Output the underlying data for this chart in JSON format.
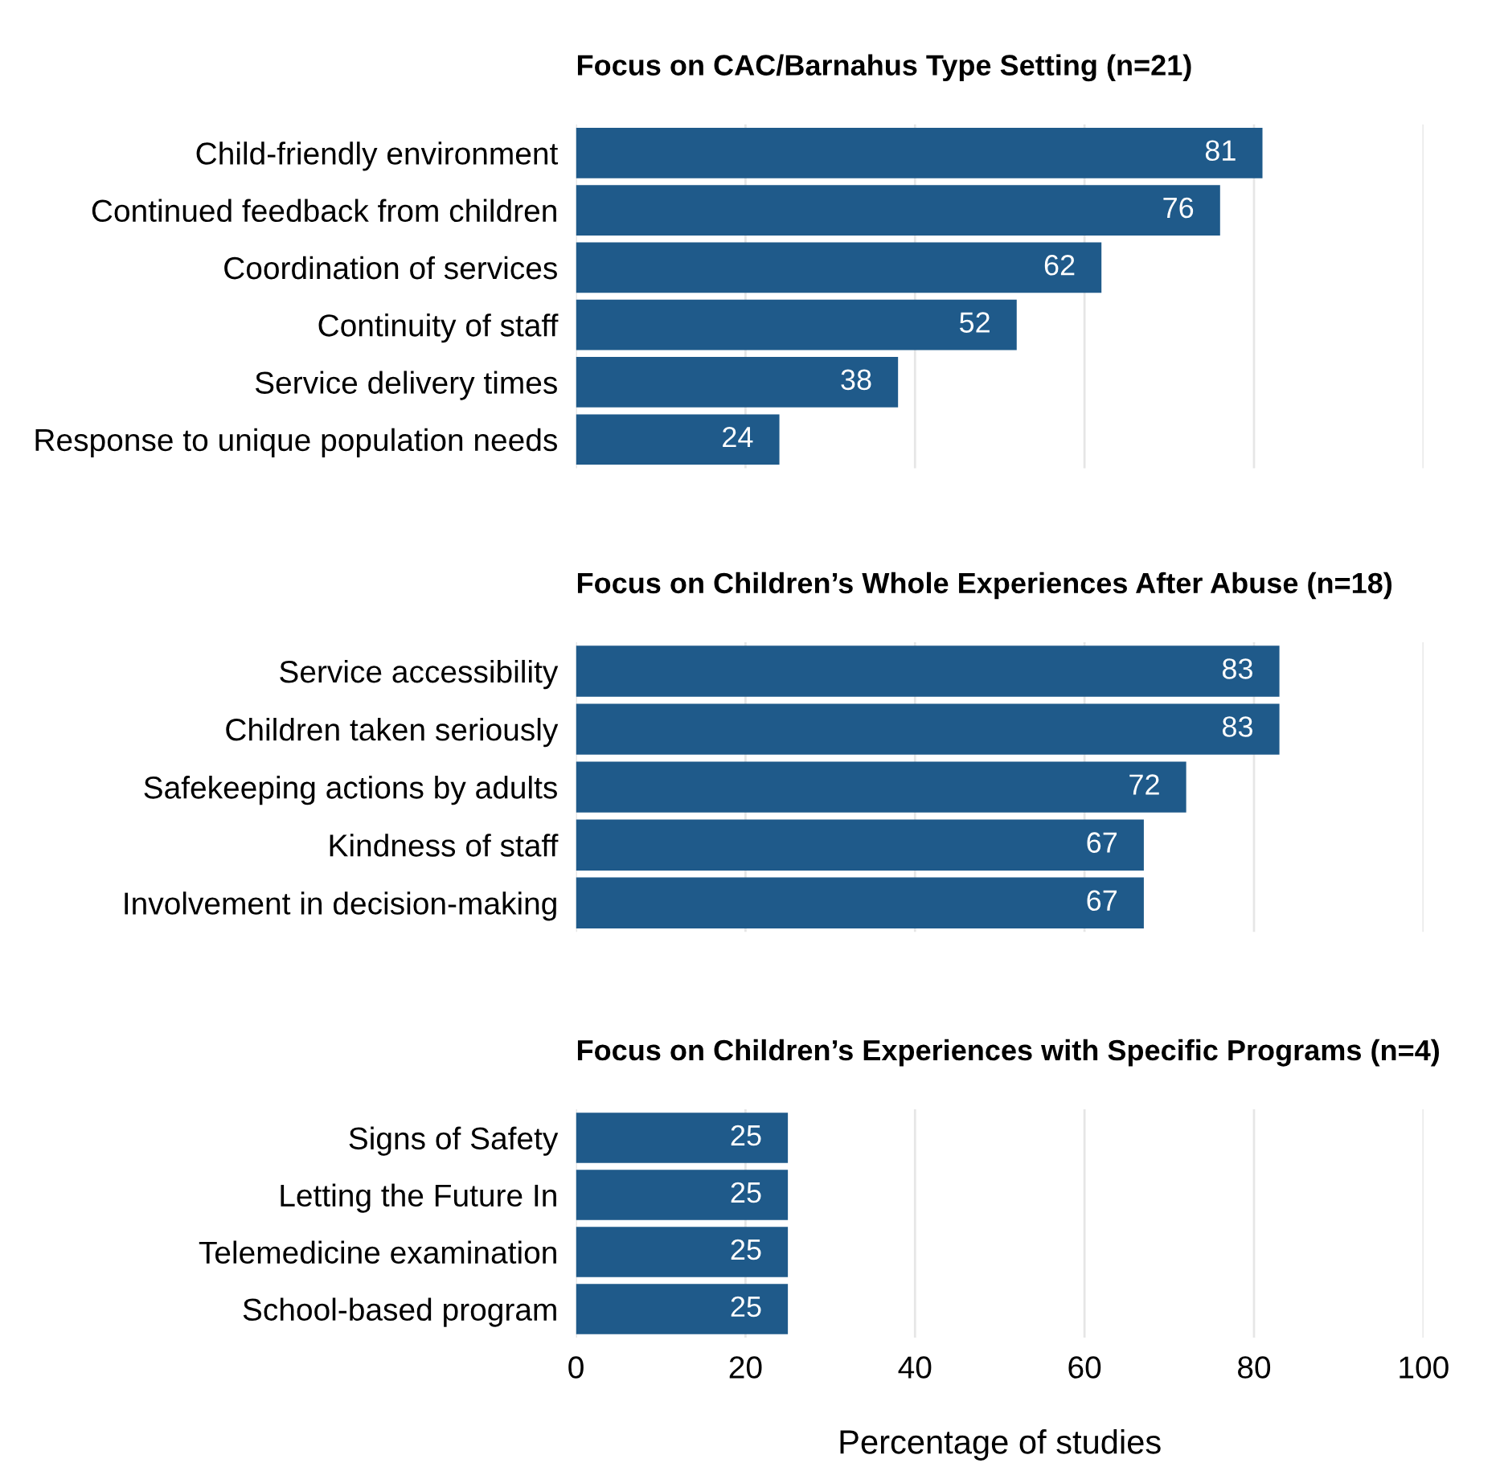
{
  "chart_data": [
    {
      "type": "bar",
      "orientation": "horizontal",
      "title": "Focus on CAC/Barnahus Type Setting (n=21)",
      "categories": [
        "Child-friendly environment",
        "Continued feedback from children",
        "Coordination of services",
        "Continuity of staff",
        "Service delivery times",
        "Response to unique population needs"
      ],
      "values": [
        81,
        76,
        62,
        52,
        38,
        24
      ],
      "color": "#1f5a8a",
      "data_labels": true,
      "xlim": [
        0,
        100
      ],
      "xticks": [
        0,
        20,
        40,
        60,
        80,
        100
      ],
      "grid": "x",
      "tick_labels": "y"
    },
    {
      "type": "bar",
      "orientation": "horizontal",
      "title": "Focus on Children’s Whole Experiences After Abuse (n=18)",
      "categories": [
        "Service accessibility",
        "Children taken seriously",
        "Safekeeping actions by adults",
        "Kindness of staff",
        "Involvement in decision-making"
      ],
      "values": [
        83,
        83,
        72,
        67,
        67
      ],
      "color": "#1f5a8a",
      "data_labels": true,
      "xlim": [
        0,
        100
      ],
      "xticks": [
        0,
        20,
        40,
        60,
        80,
        100
      ],
      "grid": "x",
      "tick_labels": "y"
    },
    {
      "type": "bar",
      "orientation": "horizontal",
      "title": "Focus on Children’s Experiences with Specific Programs (n=4)",
      "xlabel": "Percentage of studies",
      "categories": [
        "Signs of Safety",
        "Letting the Future In",
        "Telemedicine examination",
        "School-based program"
      ],
      "values": [
        25,
        25,
        25,
        25
      ],
      "color": "#1f5a8a",
      "data_labels": true,
      "xlim": [
        0,
        100
      ],
      "xticks": [
        0,
        20,
        40,
        60,
        80,
        100
      ],
      "grid": "x"
    }
  ]
}
